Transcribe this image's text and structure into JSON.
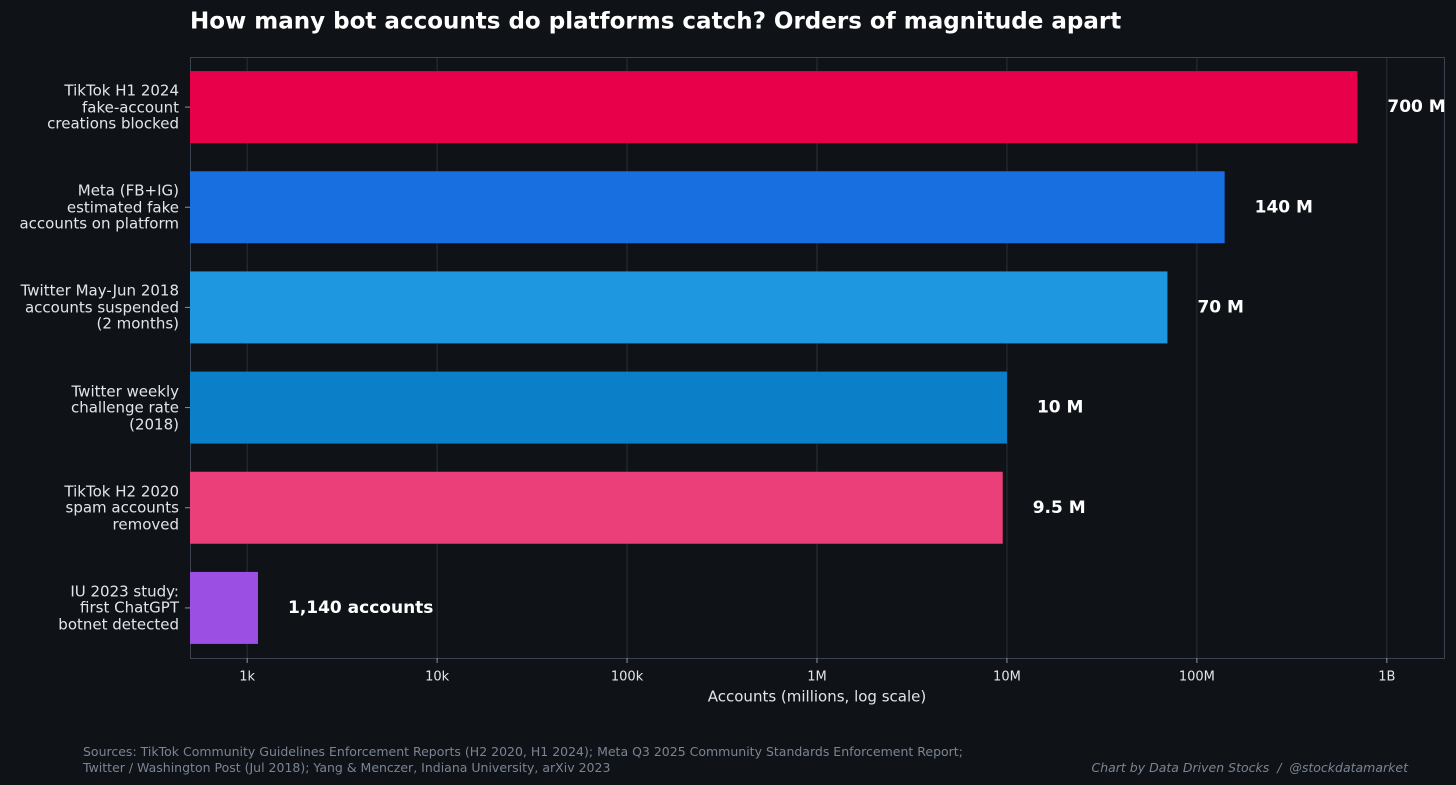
{
  "chart_data": {
    "type": "hbar",
    "title": "How many bot accounts do platforms catch? Orders of magnitude apart",
    "categories": [
      "TikTok H1 2024\nfake-account\ncreations blocked",
      "Meta (FB+IG)\nestimated fake\naccounts on platform",
      "Twitter May-Jun 2018\naccounts suspended\n(2 months)",
      "Twitter weekly\nchallenge rate\n(2018)",
      "TikTok H2 2020\nspam accounts\nremoved",
      "IU 2023 study:\nfirst ChatGPT\nbotnet detected"
    ],
    "values": [
      700000000,
      140000000,
      70000000,
      10000000,
      9500000,
      1140
    ],
    "value_labels": [
      "700 M",
      "140 M",
      "70 M",
      "10 M",
      "9.5 M",
      "1,140 accounts"
    ],
    "colors": [
      "#e8004a",
      "#176fe0",
      "#1e96e0",
      "#0b80c8",
      "#ea3f78",
      "#9b4fe3"
    ],
    "xlabel": "Accounts (millions, log scale)",
    "log_x": true,
    "grid": true,
    "xlim": [
      500,
      2000000000
    ],
    "xticks": [
      {
        "value": 1000,
        "label": "1k"
      },
      {
        "value": 10000,
        "label": "10k"
      },
      {
        "value": 100000,
        "label": "100k"
      },
      {
        "value": 1000000,
        "label": "1M"
      },
      {
        "value": 10000000,
        "label": "10M"
      },
      {
        "value": 100000000,
        "label": "100M"
      },
      {
        "value": 1000000000,
        "label": "1B"
      }
    ],
    "source": "Sources: TikTok Community Guidelines Enforcement Reports (H2 2020, H1 2024); Meta Q3 2025 Community Standards Enforcement Report;\nTwitter / Washington Post (Jul 2018); Yang & Menczer, Indiana University, arXiv 2023",
    "credit": "Chart by Data Driven Stocks  /  @stockdatamarket"
  }
}
